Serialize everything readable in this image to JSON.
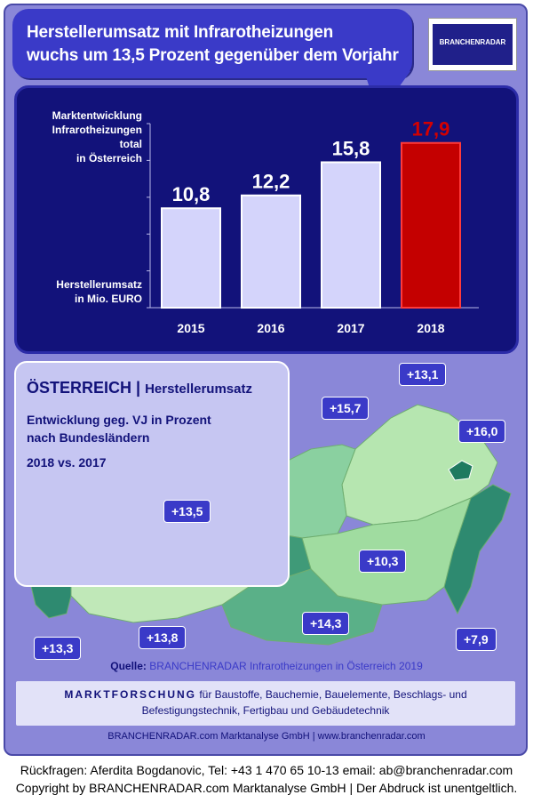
{
  "headline": {
    "line1": "Herstellerumsatz mit Infrarotheizungen",
    "line2": "wuchs um 13,5 Prozent gegenüber dem Vorjahr"
  },
  "logo": {
    "text": "BRANCHENRADAR"
  },
  "chart_data": {
    "type": "bar",
    "categories": [
      "2015",
      "2016",
      "2017",
      "2018"
    ],
    "values": [
      10.8,
      12.2,
      15.8,
      17.9
    ],
    "data_labels": [
      "10,8",
      "12,2",
      "15,8",
      "17,9"
    ],
    "title_lines": [
      "Marktentwicklung",
      "Infrarotheizungen",
      "total",
      "in Österreich"
    ],
    "ylabel_lines": [
      "Herstellerumsatz",
      "in Mio. EURO"
    ],
    "colors": {
      "default": "#d4d4fb",
      "highlight": "#c40000",
      "highlight_label": "#d40000",
      "label": "#ffffff"
    },
    "highlight_index": 3,
    "ylim": [
      0,
      20
    ]
  },
  "map": {
    "title": "ÖSTERREICH",
    "title_sub": "Herstellerumsatz",
    "subtitle_line1": "Entwicklung  geg. VJ in Prozent",
    "subtitle_line2": "nach Bundesländern",
    "period": "2018 vs. 2017",
    "labels": {
      "vorarlberg": "+13,3",
      "tirol": "+13,8",
      "salzburg": "+13,5",
      "oberoesterreich": "+15,7",
      "niederoesterreich": "+13,1",
      "wien": "+16,0",
      "burgenland": "+7,9",
      "steiermark": "+10,3",
      "kaernten": "+14,3"
    }
  },
  "source": {
    "prefix": "Quelle:",
    "text": "BRANCHENRADAR Infrarotheizungen in Österreich 2019"
  },
  "market": {
    "bold": "MARKTFORSCHUNG",
    "line1": " für Baustoffe, Bauchemie, Bauelemente, Beschlags- und",
    "line2": "Befestigungstechnik, Fertigbau und Gebäudetechnik"
  },
  "footer_line": "BRANCHENRADAR.com Marktanalyse GmbH | www.branchenradar.com",
  "contact": {
    "line1": "Rückfragen: Aferdita Bogdanovic, Tel: +43 1 470 65 10-13 email: ab@branchenradar.com",
    "line2": "Copyright by BRANCHENRADAR.com  Marktanalyse GmbH | Der Abdruck ist unentgeltlich."
  }
}
